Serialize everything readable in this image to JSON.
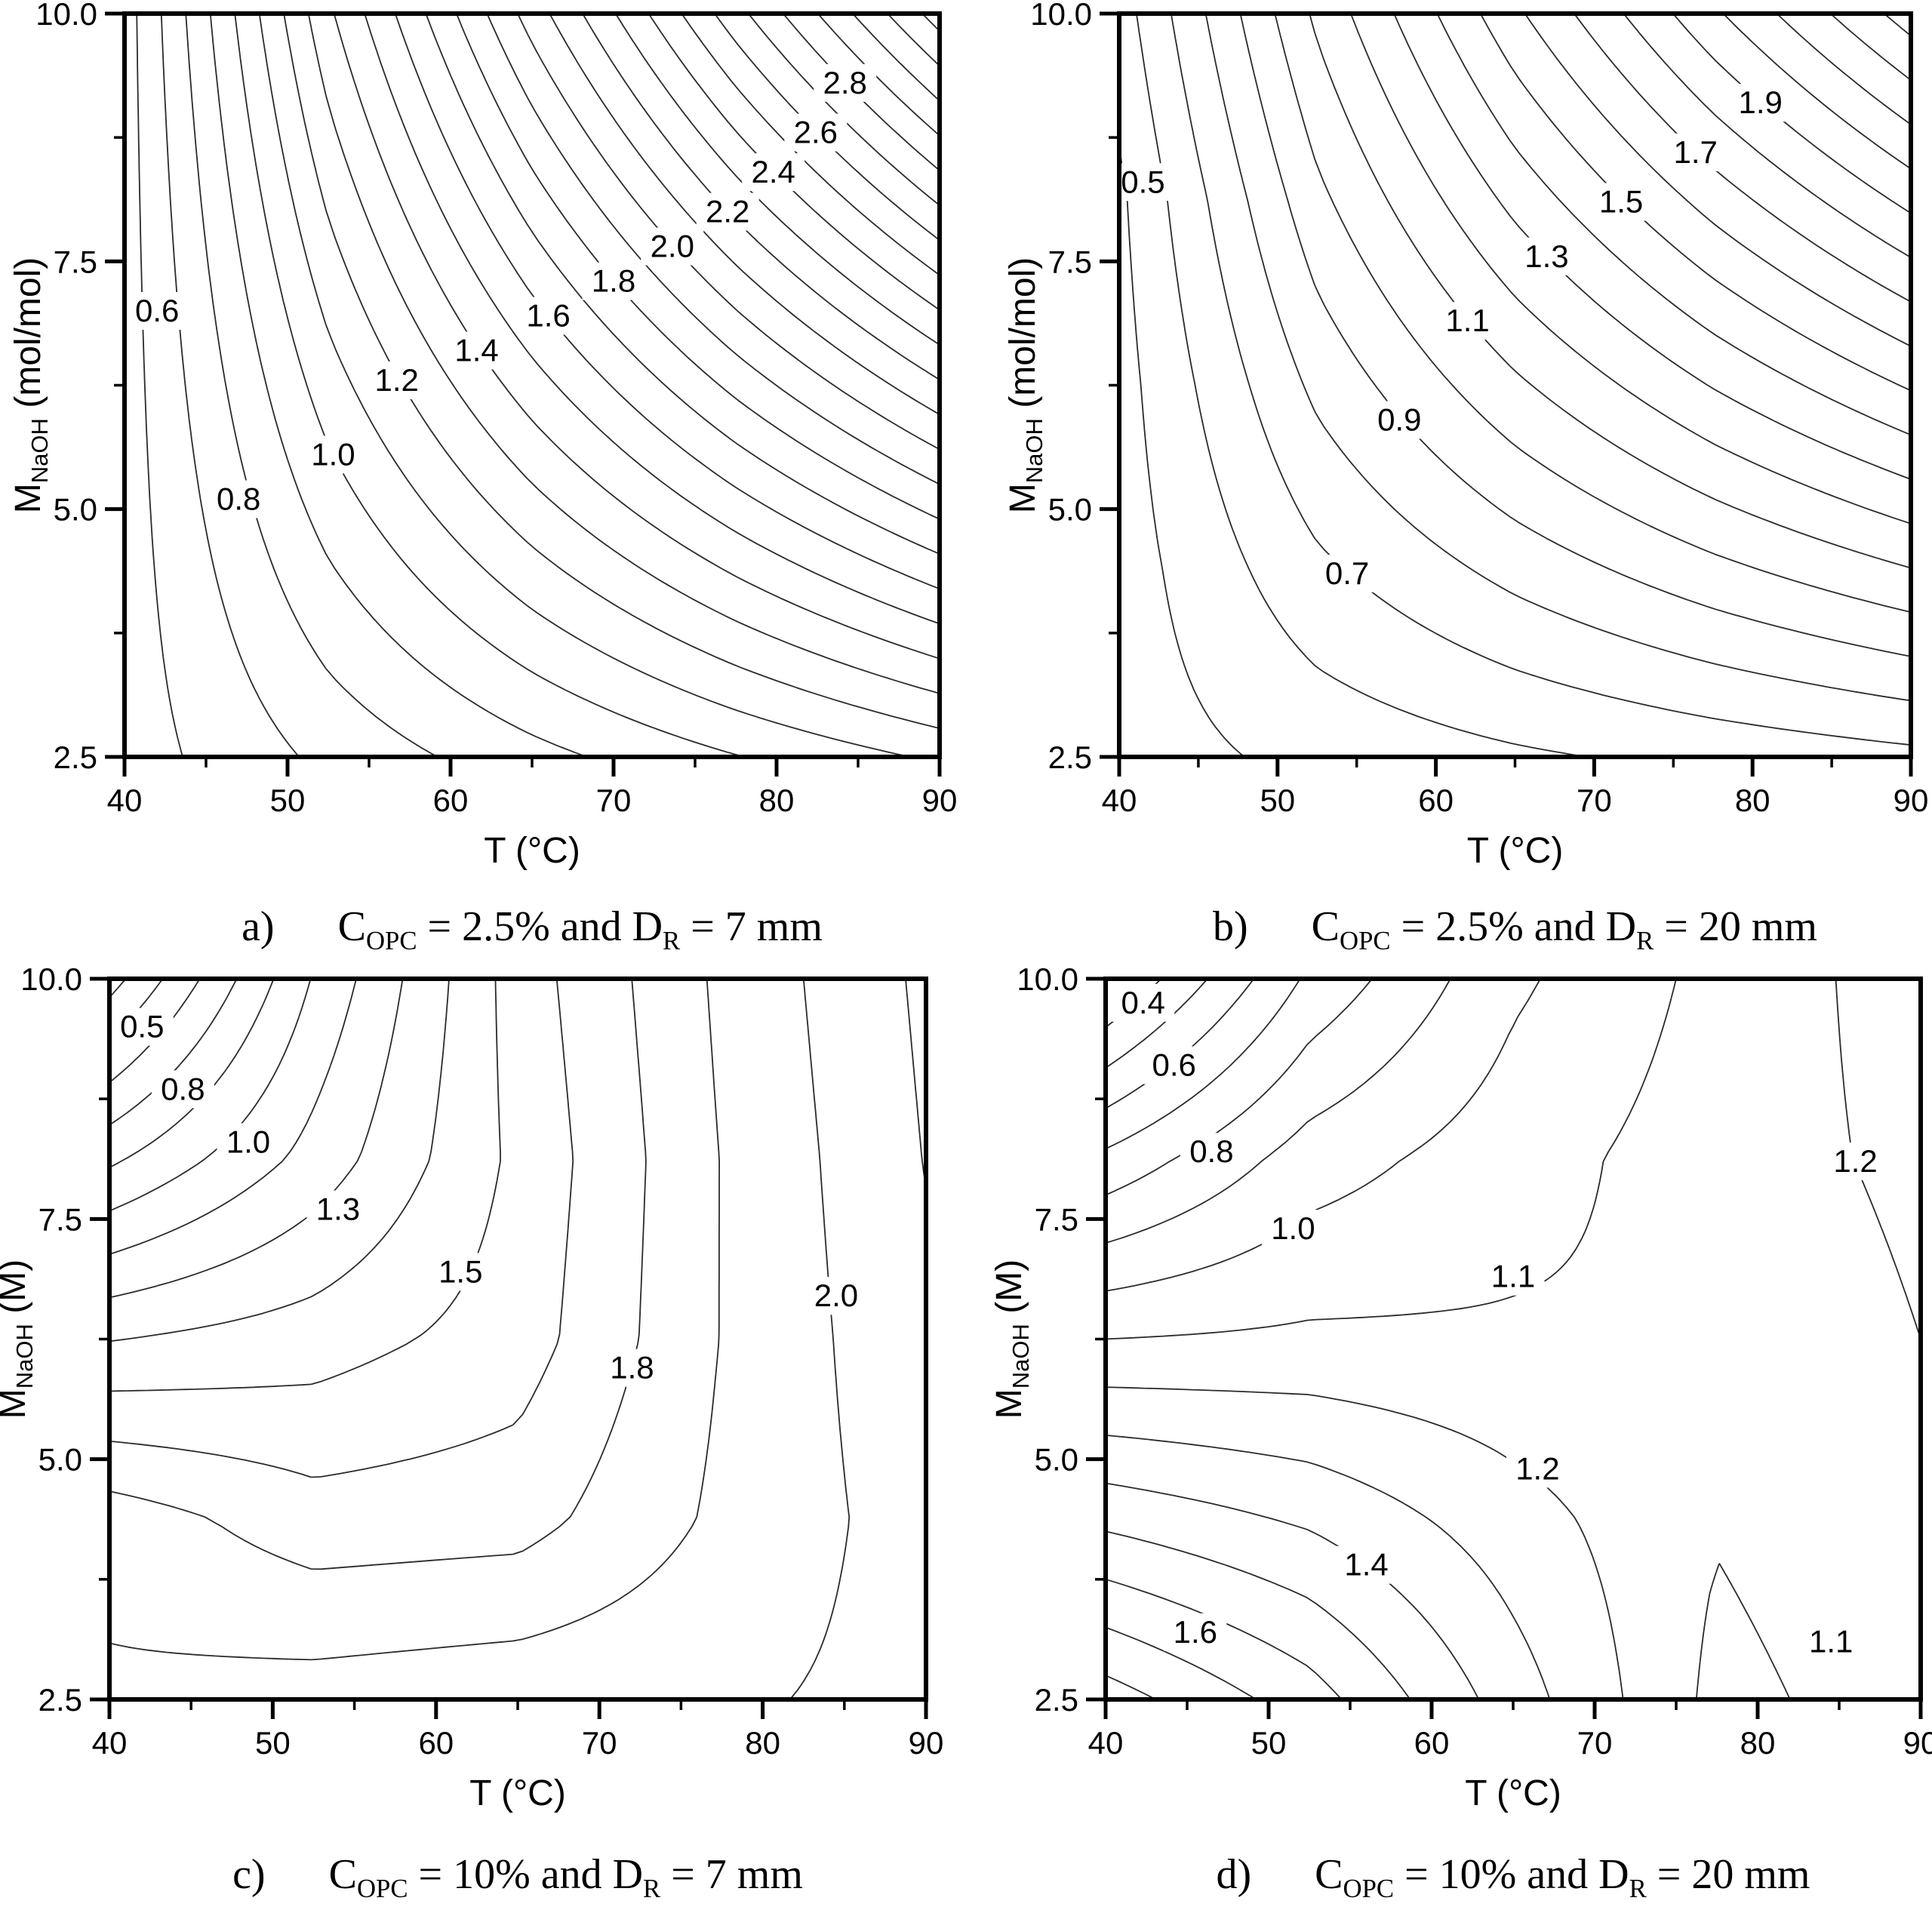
{
  "page": {
    "background": "#ffffff",
    "ink": "#000000",
    "contour_color": "#2b2b2b"
  },
  "chart_data": [
    {
      "id": "a",
      "type": "contour",
      "caption": {
        "letter": "a)",
        "formula": [
          [
            "t",
            "C"
          ],
          [
            "sub",
            "OPC"
          ],
          [
            "t",
            " = 2.5% and D"
          ],
          [
            "sub",
            "R"
          ],
          [
            "t",
            " = 7 mm"
          ]
        ]
      },
      "xlabel": "T (°C)",
      "ylabel_parts": [
        [
          "t",
          "M"
        ],
        [
          "sub",
          "NaOH"
        ],
        [
          "t",
          " (mol/mol)"
        ]
      ],
      "ylabel_text": "M_NaOH (mol/mol)",
      "x": {
        "min": 40,
        "max": 90,
        "ticks": [
          40,
          50,
          60,
          70,
          80,
          90
        ],
        "minor": [
          45,
          55,
          65,
          75,
          85
        ]
      },
      "y": {
        "min": 2.5,
        "max": 10,
        "ticks": [
          2.5,
          5.0,
          7.5,
          10.0
        ],
        "tick_labels": [
          "2.5",
          "5.0",
          "7.5",
          "10.0"
        ],
        "minor": [
          3.75,
          6.25,
          8.75
        ]
      },
      "levels": {
        "min": 0.6,
        "max": 3.2,
        "step": 0.1
      },
      "grid_T": [
        40,
        52.5,
        65,
        77.5,
        90
      ],
      "grid_M": [
        10,
        8.125,
        6.25,
        4.375,
        2.5
      ],
      "field": [
        [
          0.55,
          1.381,
          2.047,
          2.664,
          3.25
        ],
        [
          0.55,
          1.217,
          1.752,
          2.247,
          2.717
        ],
        [
          0.55,
          1.053,
          1.456,
          1.83,
          2.184
        ],
        [
          0.55,
          0.889,
          1.161,
          1.412,
          1.651
        ],
        [
          0.55,
          0.725,
          0.865,
          0.995,
          1.118
        ]
      ],
      "labels": [
        {
          "text": "0.6",
          "T": 42.0,
          "M": 7.0
        },
        {
          "text": "0.8",
          "T": 47.0,
          "M": 5.1
        },
        {
          "text": "1.0",
          "T": 52.8,
          "M": 5.55
        },
        {
          "text": "1.2",
          "T": 56.7,
          "M": 6.3
        },
        {
          "text": "1.4",
          "T": 61.6,
          "M": 6.6
        },
        {
          "text": "1.6",
          "T": 66.0,
          "M": 6.95
        },
        {
          "text": "1.8",
          "T": 70.0,
          "M": 7.3
        },
        {
          "text": "2.0",
          "T": 73.6,
          "M": 7.65
        },
        {
          "text": "2.2",
          "T": 77.0,
          "M": 8.0
        },
        {
          "text": "2.4",
          "T": 79.8,
          "M": 8.4
        },
        {
          "text": "2.6",
          "T": 82.4,
          "M": 8.8
        },
        {
          "text": "2.8",
          "T": 84.2,
          "M": 9.3
        }
      ]
    },
    {
      "id": "b",
      "type": "contour",
      "caption": {
        "letter": "b)",
        "formula": [
          [
            "t",
            "C"
          ],
          [
            "sub",
            "OPC"
          ],
          [
            "t",
            " = 2.5% and D"
          ],
          [
            "sub",
            "R"
          ],
          [
            "t",
            " = 20 mm"
          ]
        ]
      },
      "xlabel": "T (°C)",
      "ylabel_parts": [
        [
          "t",
          "M"
        ],
        [
          "sub",
          "NaOH"
        ],
        [
          "t",
          " (mol/mol)"
        ]
      ],
      "ylabel_text": "M_NaOH (mol/mol)",
      "x": {
        "min": 40,
        "max": 90,
        "ticks": [
          40,
          50,
          60,
          70,
          80,
          90
        ],
        "minor": [
          45,
          55,
          65,
          75,
          85
        ]
      },
      "y": {
        "min": 2.5,
        "max": 10,
        "ticks": [
          2.5,
          5.0,
          7.5,
          10.0
        ],
        "tick_labels": [
          "2.5",
          "5.0",
          "7.5",
          "10.0"
        ],
        "minor": [
          3.75,
          6.25,
          8.75
        ]
      },
      "levels": {
        "min": 0.5,
        "max": 2.3,
        "step": 0.1
      },
      "grid_T": [
        40,
        52.5,
        65,
        77.5,
        90
      ],
      "grid_M": [
        10,
        8.125,
        6.25,
        4.375,
        2.5
      ],
      "field": [
        [
          0.55,
          1.122,
          1.58,
          1.981,
          2.35
        ],
        [
          0.48,
          0.974,
          1.331,
          1.643,
          1.931
        ],
        [
          0.46,
          0.825,
          1.081,
          1.306,
          1.512
        ],
        [
          0.45,
          0.677,
          0.832,
          0.968,
          1.093
        ],
        [
          0.45,
          0.529,
          0.583,
          0.63,
          0.673
        ]
      ],
      "labels": [
        {
          "text": "0.5",
          "T": 41.5,
          "M": 8.3
        },
        {
          "text": "0.7",
          "T": 54.4,
          "M": 4.35
        },
        {
          "text": "0.9",
          "T": 57.7,
          "M": 5.9
        },
        {
          "text": "1.1",
          "T": 62.0,
          "M": 6.9
        },
        {
          "text": "1.3",
          "T": 67.0,
          "M": 7.55
        },
        {
          "text": "1.5",
          "T": 71.7,
          "M": 8.1
        },
        {
          "text": "1.7",
          "T": 76.4,
          "M": 8.6
        },
        {
          "text": "1.9",
          "T": 80.5,
          "M": 9.1
        }
      ]
    },
    {
      "id": "c",
      "type": "contour",
      "caption": {
        "letter": "c)",
        "formula": [
          [
            "t",
            "C"
          ],
          [
            "sub",
            "OPC"
          ],
          [
            "t",
            " = 10% and D"
          ],
          [
            "sub",
            "R"
          ],
          [
            "t",
            " = 7 mm"
          ]
        ]
      },
      "xlabel": "T (°C)",
      "ylabel_parts": [
        [
          "t",
          "M"
        ],
        [
          "sub",
          "NaOH"
        ],
        [
          "t",
          " (M)"
        ]
      ],
      "ylabel_text": "M_NaOH (M)",
      "x": {
        "min": 40,
        "max": 90,
        "ticks": [
          40,
          50,
          60,
          70,
          80,
          90
        ],
        "minor": [
          45,
          55,
          65,
          75,
          85
        ]
      },
      "y": {
        "min": 2.5,
        "max": 10,
        "ticks": [
          2.5,
          5.0,
          7.5,
          10.0
        ],
        "tick_labels": [
          "2.5",
          "5.0",
          "7.5",
          "10.0"
        ],
        "minor": [
          3.75,
          6.25,
          8.75
        ]
      },
      "levels": {
        "min": 0.375,
        "max": 2.125,
        "step": 0.125
      },
      "grid_T": [
        40,
        52.5,
        65,
        77.5,
        90
      ],
      "grid_M": [
        10,
        8.125,
        6.25,
        4.375,
        2.5
      ],
      "field": [
        [
          0.32,
          1.01,
          1.56,
          1.9,
          2.15
        ],
        [
          0.85,
          1.17,
          1.53,
          1.88,
          2.13
        ],
        [
          1.37,
          1.44,
          1.56,
          1.88,
          2.1
        ],
        [
          1.82,
          1.68,
          1.7,
          1.9,
          2.06
        ],
        [
          1.9,
          1.93,
          1.96,
          1.98,
          2.04
        ]
      ],
      "labels": [
        {
          "text": "0.5",
          "T": 42.0,
          "M": 9.5
        },
        {
          "text": "0.8",
          "T": 44.5,
          "M": 8.85
        },
        {
          "text": "1.0",
          "T": 48.5,
          "M": 8.3
        },
        {
          "text": "1.3",
          "T": 54.0,
          "M": 7.6
        },
        {
          "text": "1.5",
          "T": 61.5,
          "M": 6.95
        },
        {
          "text": "1.8",
          "T": 72.0,
          "M": 5.95
        },
        {
          "text": "2.0",
          "T": 84.5,
          "M": 6.7
        }
      ]
    },
    {
      "id": "d",
      "type": "contour",
      "caption": {
        "letter": "d)",
        "formula": [
          [
            "t",
            "C"
          ],
          [
            "sub",
            "OPC"
          ],
          [
            "t",
            " = 10% and D"
          ],
          [
            "sub",
            "R"
          ],
          [
            "t",
            " = 20 mm"
          ]
        ]
      },
      "xlabel": "T (°C)",
      "ylabel_parts": [
        [
          "t",
          "M"
        ],
        [
          "sub",
          "NaOH"
        ],
        [
          "t",
          " (M)"
        ]
      ],
      "ylabel_text": "M_NaOH (M)",
      "x": {
        "min": 40,
        "max": 90,
        "ticks": [
          40,
          50,
          60,
          70,
          80,
          90
        ],
        "minor": [
          45,
          55,
          65,
          75,
          85
        ]
      },
      "y": {
        "min": 2.5,
        "max": 10,
        "ticks": [
          2.5,
          5.0,
          7.5,
          10.0
        ],
        "tick_labels": [
          "2.5",
          "5.0",
          "7.5",
          "10.0"
        ],
        "minor": [
          3.75,
          6.25,
          8.75
        ]
      },
      "levels": {
        "min": 0.4,
        "max": 1.8,
        "step": 0.1
      },
      "grid_T": [
        40,
        52.5,
        65,
        77.5,
        90
      ],
      "grid_M": [
        10,
        8.125,
        6.25,
        4.375,
        2.5
      ],
      "field": [
        [
          0.28,
          0.72,
          0.98,
          1.13,
          1.25
        ],
        [
          0.725,
          0.95,
          1.06,
          1.15,
          1.225
        ],
        [
          1.1,
          1.118,
          1.1125,
          1.1117,
          1.2
        ],
        [
          1.475,
          1.384,
          1.241,
          1.108,
          1.175
        ],
        [
          1.85,
          1.647,
          1.35,
          1.072,
          1.15
        ]
      ],
      "labels": [
        {
          "text": "0.4",
          "T": 42.3,
          "M": 9.75
        },
        {
          "text": "0.6",
          "T": 44.2,
          "M": 9.1
        },
        {
          "text": "0.8",
          "T": 46.5,
          "M": 8.2
        },
        {
          "text": "1.0",
          "T": 51.5,
          "M": 7.4
        },
        {
          "text": "1.1",
          "T": 65.0,
          "M": 6.9
        },
        {
          "text": "1.2",
          "T": 86.0,
          "M": 8.1
        },
        {
          "text": "1.2",
          "T": 66.5,
          "M": 4.9
        },
        {
          "text": "1.4",
          "T": 56.0,
          "M": 3.9
        },
        {
          "text": "1.6",
          "T": 45.5,
          "M": 3.2
        },
        {
          "text": "1.1",
          "T": 84.5,
          "M": 3.1
        }
      ]
    }
  ]
}
